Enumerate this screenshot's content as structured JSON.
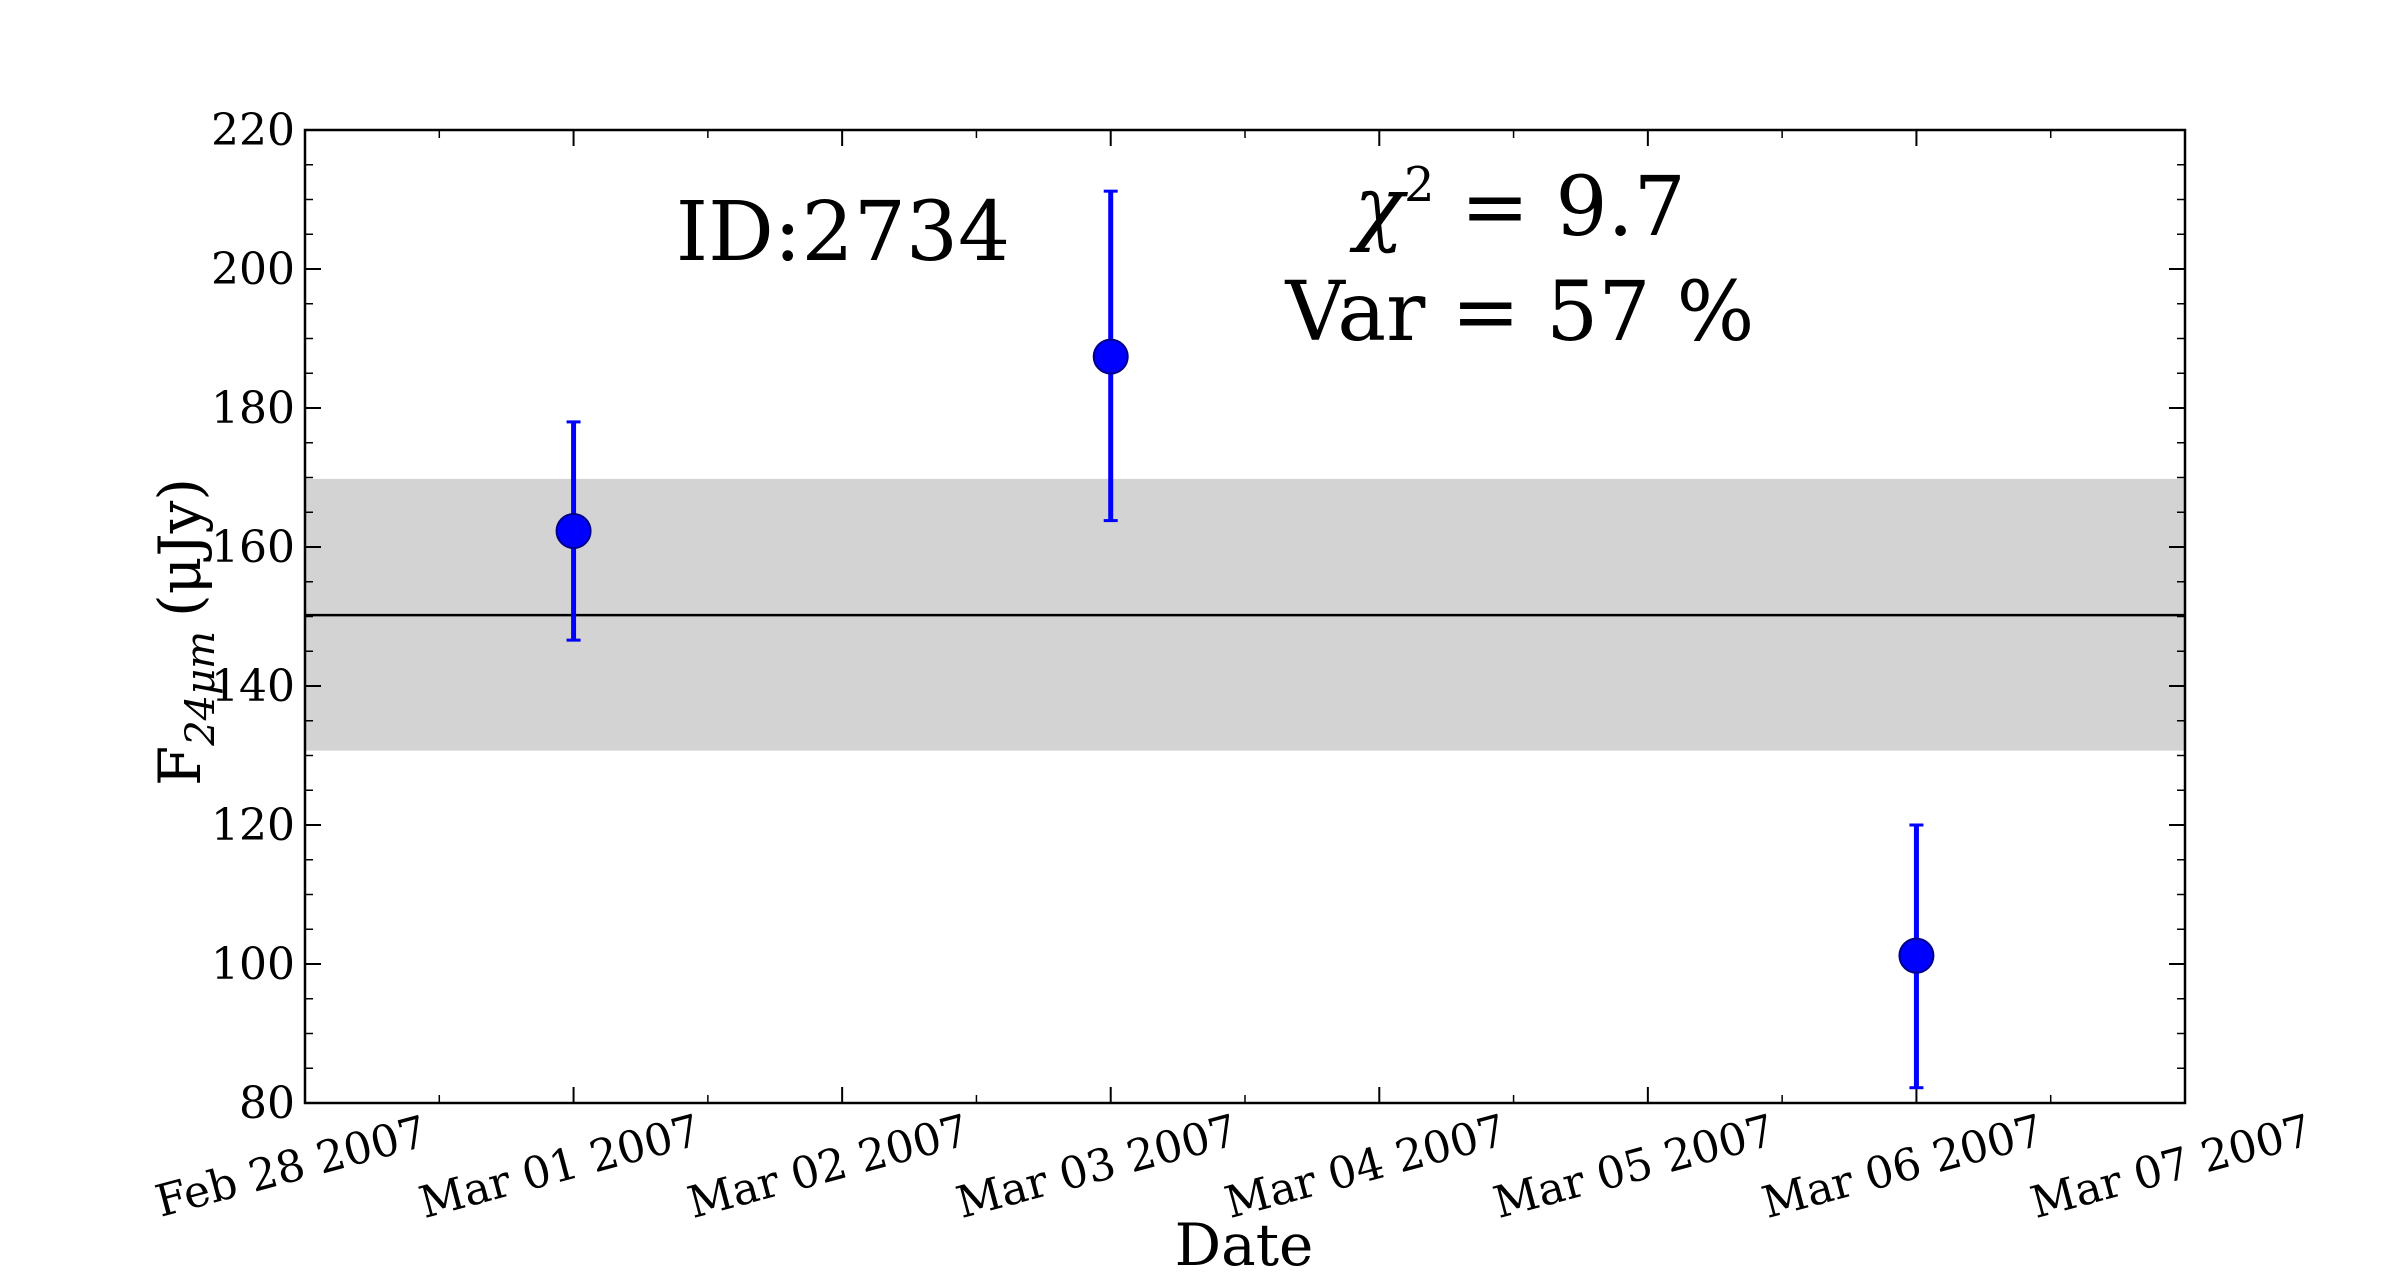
{
  "chart_data": {
    "type": "scatter",
    "title": "",
    "xlabel": "Date",
    "ylabel": "F24μm (μJy)",
    "ylabel_main": "F",
    "ylabel_sub": "24μm",
    "ylabel_unit": "(μJy)",
    "ylim": [
      80,
      220
    ],
    "yticks": [
      80,
      100,
      120,
      140,
      160,
      180,
      200,
      220
    ],
    "xlim": [
      "2007-02-28",
      "2007-03-07"
    ],
    "xtick_labels": [
      "Feb 28 2007",
      "Mar 01 2007",
      "Mar 02 2007",
      "Mar 03 2007",
      "Mar 04 2007",
      "Mar 05 2007",
      "Mar 06 2007",
      "Mar 07 2007"
    ],
    "series": [
      {
        "x": [
          "2007-03-01",
          "2007-03-03",
          "2007-03-06"
        ],
        "y": [
          162.3,
          187.4,
          101.2
        ],
        "yerr_low": [
          146.6,
          163.8,
          82.2
        ],
        "yerr_high": [
          178.0,
          211.2,
          120.0
        ],
        "color": "#0000ff"
      }
    ],
    "mean_line": 150.2,
    "band": [
      130.7,
      169.8
    ],
    "band_color": "#d3d3d3",
    "grid": false,
    "annotations": {
      "id_label": "ID:2734",
      "chi_symbol": "χ",
      "chi_sup": "2",
      "chi_value": " = 9.7",
      "var_label": "Var = 57 %"
    }
  }
}
